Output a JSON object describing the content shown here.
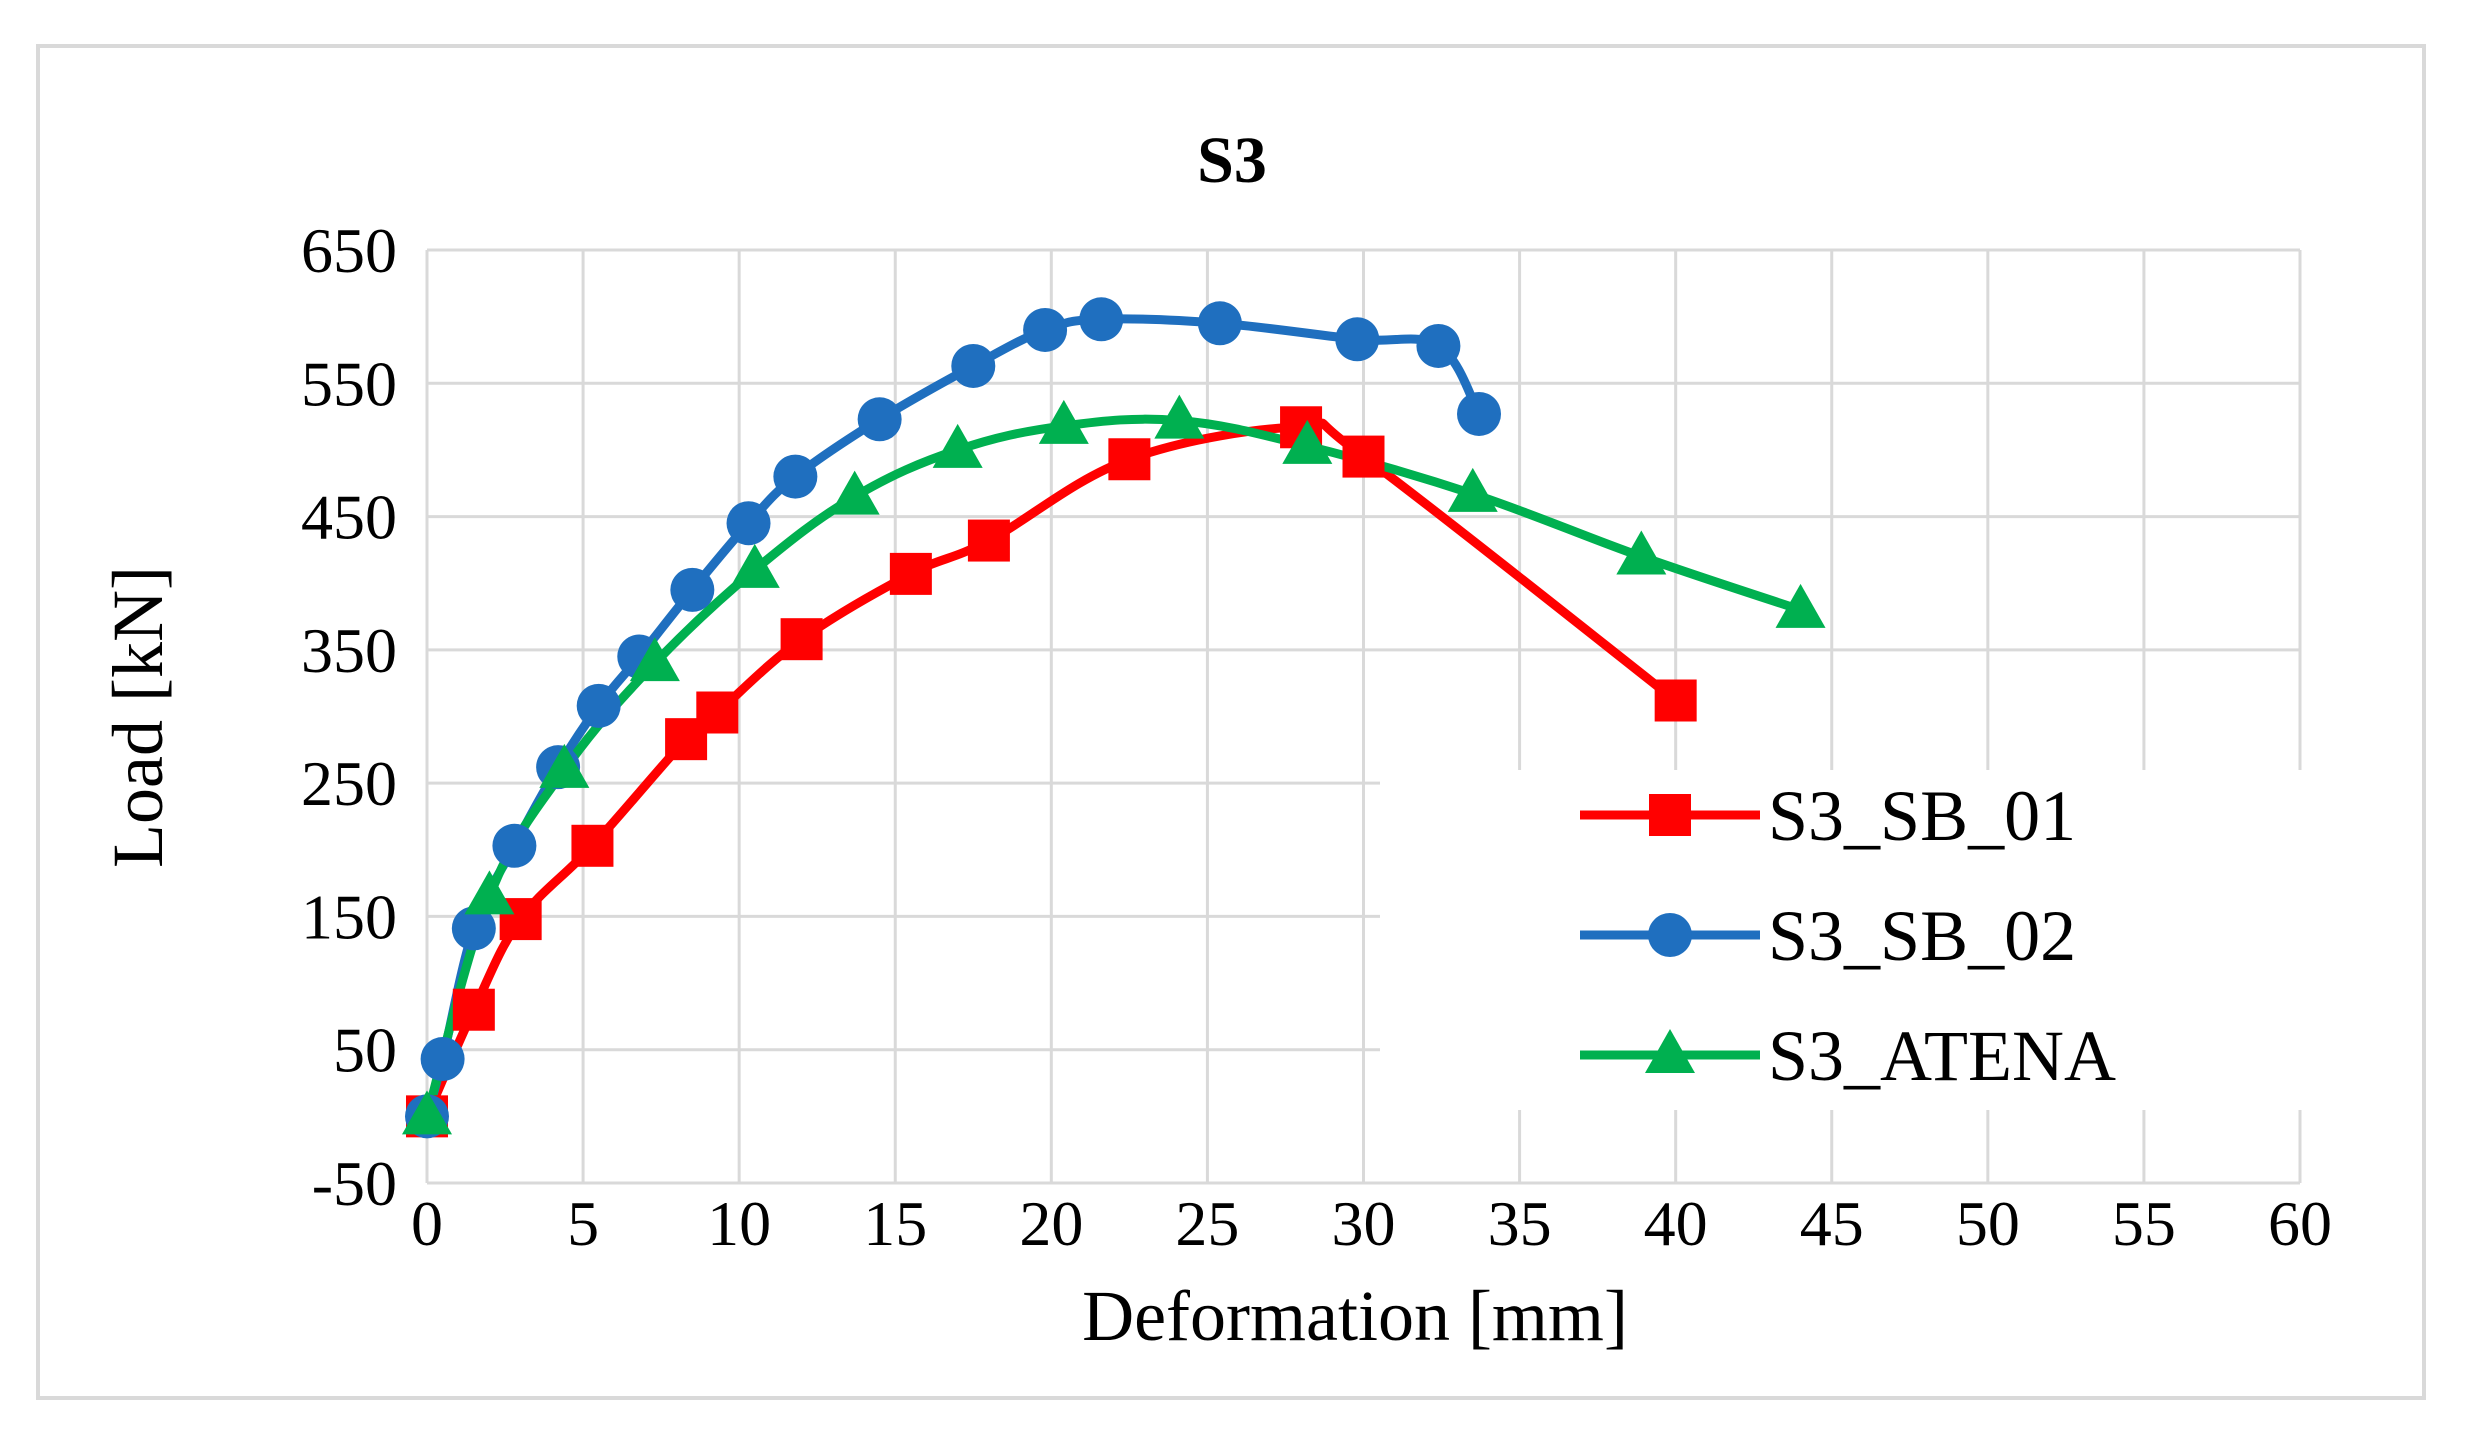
{
  "chart_data": {
    "type": "line",
    "title": "S3",
    "xlabel": "Deformation [mm]",
    "ylabel": "Load  [kN]",
    "xlim": [
      0,
      60
    ],
    "ylim": [
      -50,
      650
    ],
    "xticks": [
      0,
      5,
      10,
      15,
      20,
      25,
      30,
      35,
      40,
      45,
      50,
      55,
      60
    ],
    "yticks": [
      -50,
      50,
      150,
      250,
      350,
      450,
      550,
      650
    ],
    "grid": true,
    "legend_position": "bottom-right",
    "series": [
      {
        "name": "S3_SB_01",
        "color": "#ff0000",
        "marker": "square",
        "x": [
          0,
          1.5,
          3,
          5.3,
          8.3,
          9.3,
          12,
          15.5,
          18,
          22.5,
          28,
          30,
          40
        ],
        "y": [
          0,
          80,
          148,
          203,
          283,
          303,
          358,
          407,
          432,
          493,
          517,
          495,
          312
        ]
      },
      {
        "name": "S3_SB_02",
        "color": "#1f6fbf",
        "marker": "circle",
        "x": [
          0,
          0.5,
          1.5,
          2.8,
          4.2,
          5.5,
          6.8,
          8.5,
          10.3,
          11.8,
          14.5,
          17.5,
          19.8,
          21.6,
          25.4,
          29.8,
          32.4,
          33.7
        ],
        "y": [
          0,
          43,
          141,
          203,
          262,
          308,
          345,
          395,
          445,
          480,
          523,
          563,
          590,
          598,
          595,
          583,
          578,
          527
        ]
      },
      {
        "name": "S3_ATENA",
        "color": "#00b050",
        "marker": "triangle",
        "x": [
          0,
          2,
          4.4,
          7.3,
          10.5,
          13.7,
          17,
          20.4,
          24.1,
          28.2,
          33.5,
          38.9,
          44
        ],
        "y": [
          0,
          165,
          260,
          340,
          410,
          465,
          500,
          518,
          522,
          503,
          467,
          420,
          380
        ]
      }
    ]
  }
}
